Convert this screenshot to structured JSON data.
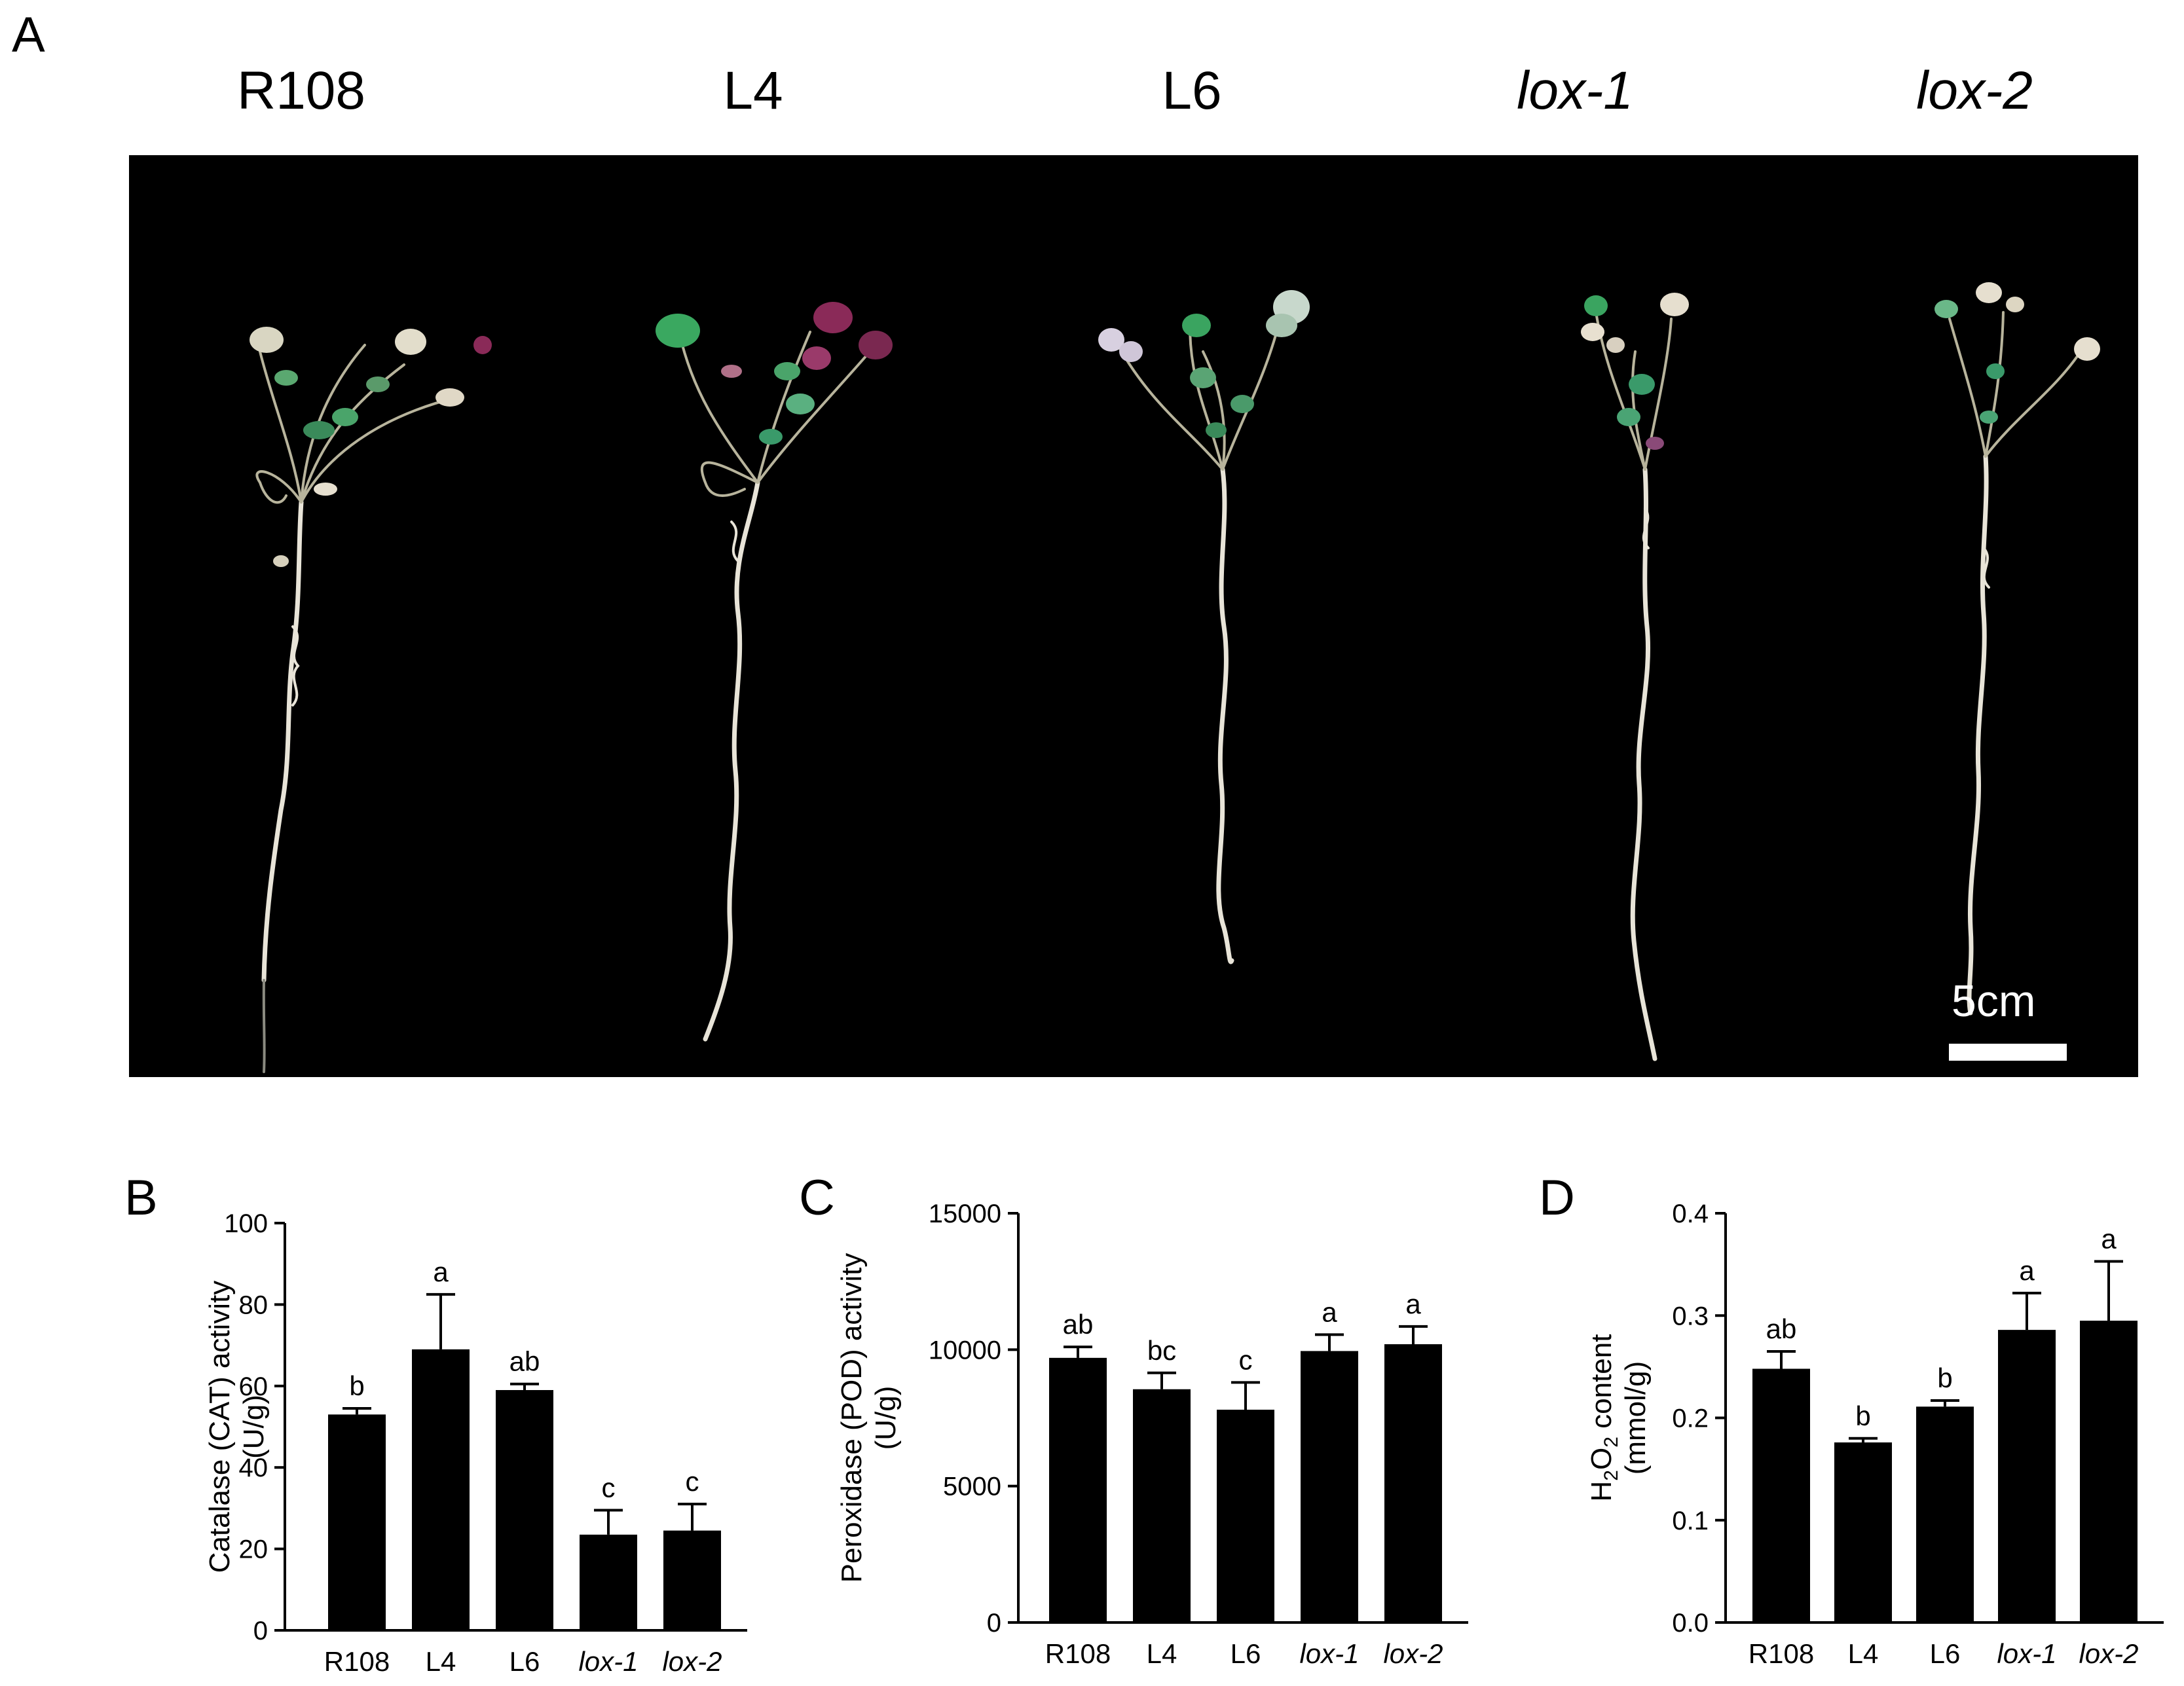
{
  "panel_a": {
    "letter": "A",
    "genotypes": [
      "R108",
      "L4",
      "L6",
      "lox-1",
      "lox-2"
    ],
    "scale_label": "5cm"
  },
  "chart_data": [
    {
      "type": "bar",
      "panel": "B",
      "categories": [
        "R108",
        "L4",
        "L6",
        "lox-1",
        "lox-2"
      ],
      "values": [
        53,
        69,
        59,
        23.5,
        24.5
      ],
      "errors": [
        1.5,
        13.5,
        1.5,
        6,
        6.5
      ],
      "significance": [
        "b",
        "a",
        "ab",
        "c",
        "c"
      ],
      "ylabel_lines": [
        "Catalase (CAT) activity",
        "(U/g)"
      ],
      "ylim": [
        0,
        100
      ],
      "yticks": [
        0,
        20,
        40,
        60,
        80,
        100
      ],
      "italic_categories": [
        "lox-1",
        "lox-2"
      ],
      "color": "#000000"
    },
    {
      "type": "bar",
      "panel": "C",
      "categories": [
        "R108",
        "L4",
        "L6",
        "lox-1",
        "lox-2"
      ],
      "values": [
        9700,
        8550,
        7800,
        9950,
        10200
      ],
      "errors": [
        400,
        600,
        1000,
        600,
        650
      ],
      "significance": [
        "ab",
        "bc",
        "c",
        "a",
        "a"
      ],
      "ylabel_lines": [
        "Peroxidase (POD) activity",
        "(U/g)"
      ],
      "ylim": [
        0,
        15000
      ],
      "yticks": [
        0,
        5000,
        10000,
        15000
      ],
      "italic_categories": [
        "lox-1",
        "lox-2"
      ],
      "color": "#000000"
    },
    {
      "type": "bar",
      "panel": "D",
      "categories": [
        "R108",
        "L4",
        "L6",
        "lox-1",
        "lox-2"
      ],
      "values": [
        0.248,
        0.176,
        0.211,
        0.286,
        0.295
      ],
      "errors": [
        0.017,
        0.004,
        0.006,
        0.036,
        0.058
      ],
      "significance": [
        "ab",
        "b",
        "b",
        "a",
        "a"
      ],
      "ylabel_lines": [
        "H2O2 content",
        "(mmol/g)"
      ],
      "ylim": [
        0,
        0.4
      ],
      "yticks": [
        0.0,
        0.1,
        0.2,
        0.3,
        0.4
      ],
      "ytick_labels": [
        "0.0",
        "0.1",
        "0.2",
        "0.3",
        "0.4"
      ],
      "italic_categories": [
        "lox-1",
        "lox-2"
      ],
      "color": "#000000"
    }
  ]
}
